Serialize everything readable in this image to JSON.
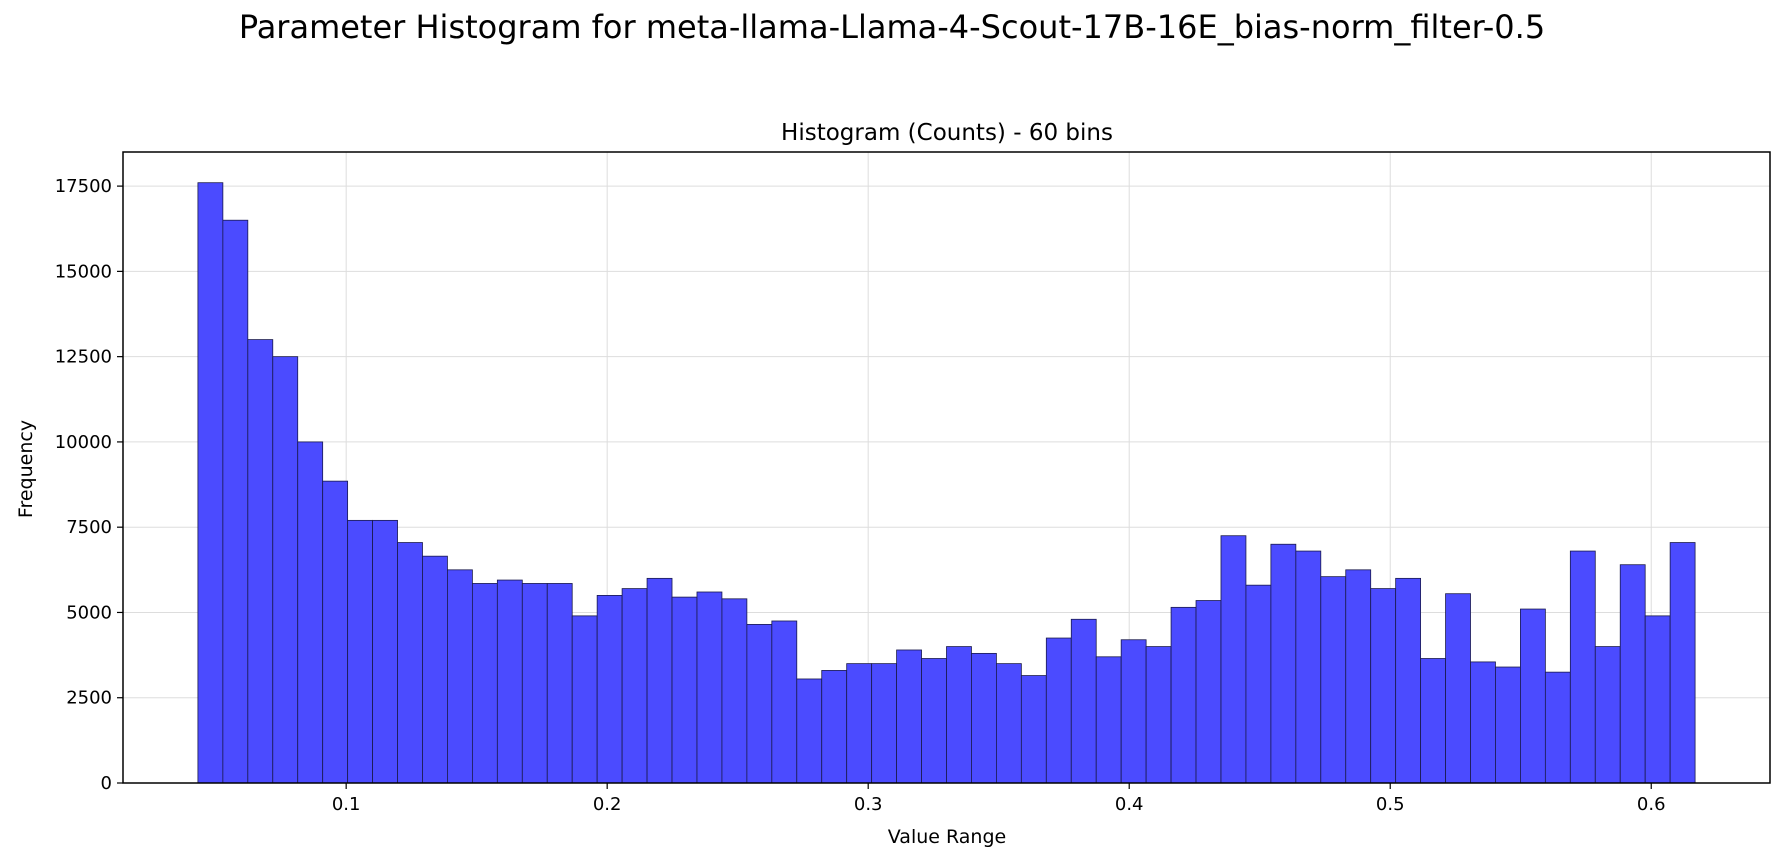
{
  "figure": {
    "title": "Parameter Histogram for meta-llama-Llama-4-Scout-17B-16E_bias-norm_filter-0.5"
  },
  "chart_data": {
    "type": "bar",
    "title": "Histogram (Counts) - 60 bins",
    "xlabel": "Value Range",
    "ylabel": "Frequency",
    "bins": 60,
    "bin_start": 0.0432,
    "bin_width": 0.00956,
    "xlim": [
      0.0145,
      0.6455
    ],
    "ylim": [
      0,
      18500
    ],
    "xticks": [
      0.1,
      0.2,
      0.3,
      0.4,
      0.5,
      0.6
    ],
    "xtick_labels": [
      "0.1",
      "0.2",
      "0.3",
      "0.4",
      "0.5",
      "0.6"
    ],
    "yticks": [
      0,
      2500,
      5000,
      7500,
      10000,
      12500,
      15000,
      17500
    ],
    "ytick_labels": [
      "0",
      "2500",
      "5000",
      "7500",
      "10000",
      "12500",
      "15000",
      "17500"
    ],
    "values": [
      17600,
      16500,
      13000,
      12500,
      10000,
      8850,
      7700,
      7700,
      7050,
      6650,
      6250,
      5850,
      5950,
      5850,
      5850,
      4900,
      5500,
      5700,
      6000,
      5450,
      5600,
      5400,
      4650,
      4750,
      3050,
      3300,
      3500,
      3500,
      3900,
      3650,
      4000,
      3800,
      3500,
      3150,
      4250,
      4800,
      3700,
      4200,
      4000,
      5150,
      5350,
      7250,
      5800,
      7000,
      6800,
      6050,
      6250,
      5700,
      6000,
      3650,
      5550,
      3550,
      3400,
      5100,
      3250,
      6800,
      4000,
      6400,
      4900,
      7050
    ],
    "bar_color": "#4b4bff",
    "edge_color": "#1a1a4d",
    "grid": true
  }
}
